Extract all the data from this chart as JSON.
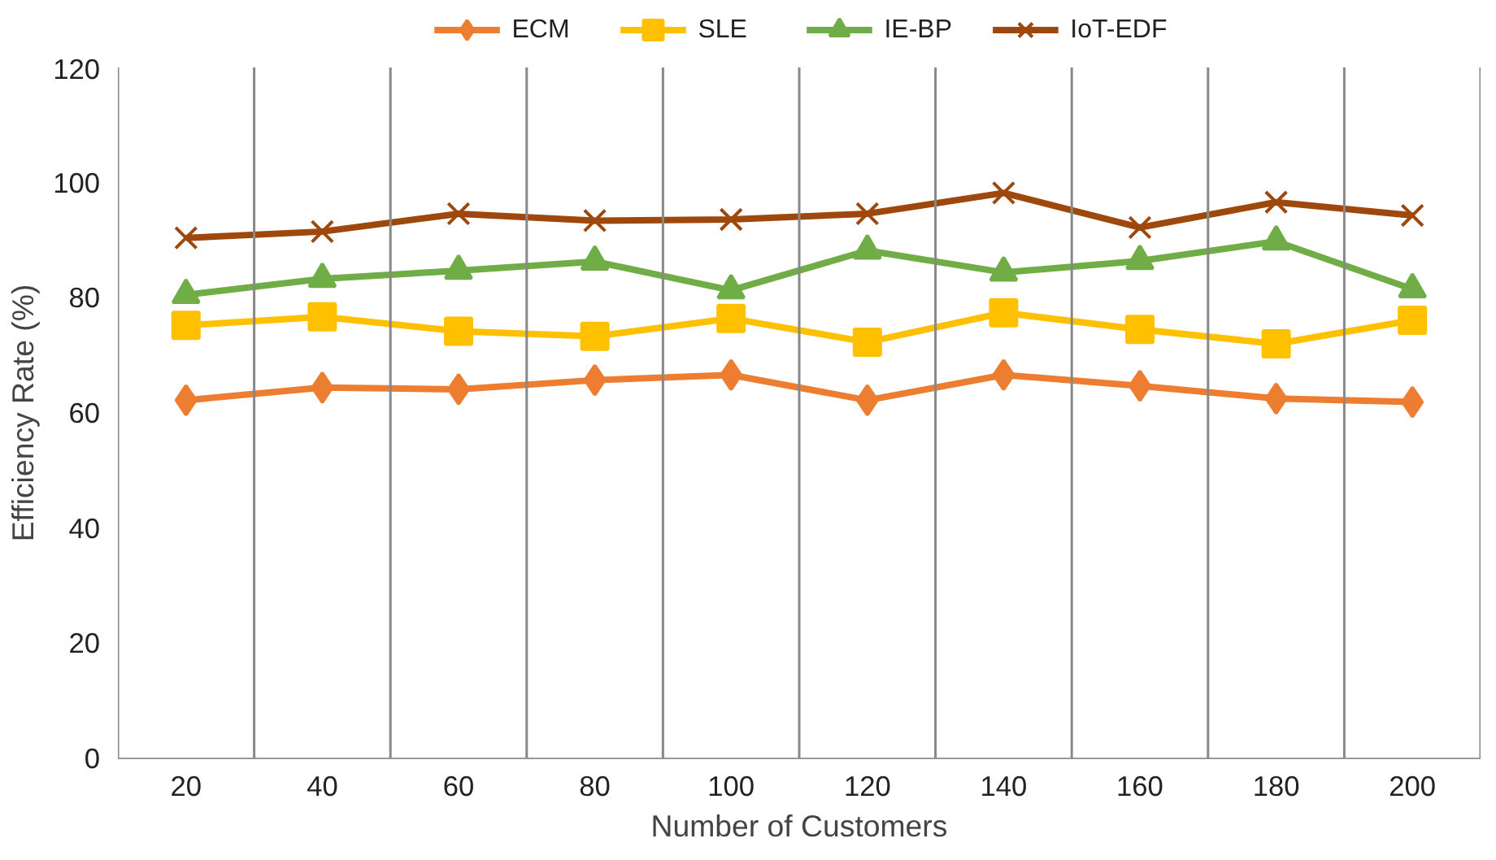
{
  "chart_data": {
    "type": "line",
    "xlabel": "Number of Customers",
    "ylabel": "Efficiency Rate (%)",
    "categories": [
      "20",
      "40",
      "60",
      "80",
      "100",
      "120",
      "140",
      "160",
      "180",
      "200"
    ],
    "series": [
      {
        "name": "ECM",
        "color": "#ed7d31",
        "marker": "diamond",
        "values": [
          62.2,
          64.4,
          64.1,
          65.7,
          66.6,
          62.2,
          66.6,
          64.7,
          62.5,
          61.9
        ]
      },
      {
        "name": "SLE",
        "color": "#ffc000",
        "marker": "square",
        "values": [
          75.2,
          76.7,
          74.2,
          73.3,
          76.4,
          72.3,
          77.4,
          74.5,
          72.0,
          76.1
        ]
      },
      {
        "name": "IE-BP",
        "color": "#70ad47",
        "marker": "triangle",
        "values": [
          80.5,
          83.3,
          84.7,
          86.3,
          81.3,
          88.2,
          84.4,
          86.4,
          89.8,
          81.5
        ]
      },
      {
        "name": "IoT-EDF",
        "color": "#9e480e",
        "marker": "cross",
        "values": [
          90.4,
          91.5,
          94.6,
          93.4,
          93.6,
          94.6,
          98.2,
          92.2,
          96.6,
          94.3
        ]
      }
    ],
    "ylim": [
      0,
      120
    ],
    "yticks": [
      0,
      20,
      40,
      60,
      80,
      100,
      120
    ],
    "grid": "x",
    "legend": "top",
    "line_style": "solid"
  }
}
